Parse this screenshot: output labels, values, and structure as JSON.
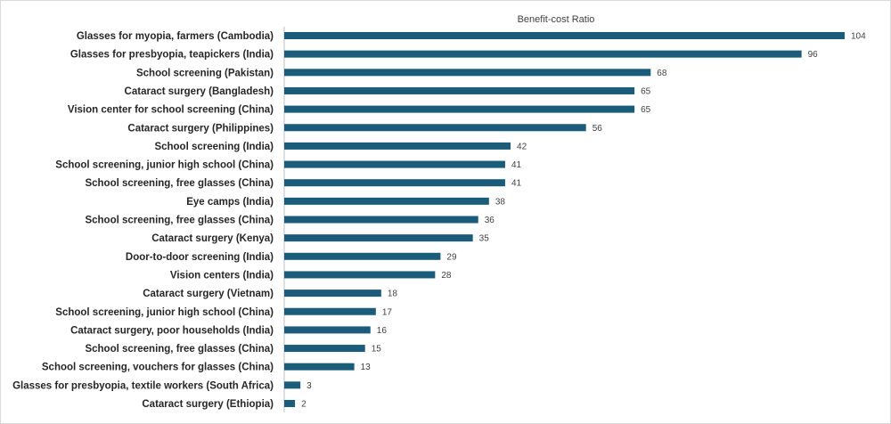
{
  "chart_data": {
    "type": "bar",
    "orientation": "horizontal",
    "title": "Benefit-cost Ratio",
    "xlabel": "",
    "ylabel": "",
    "xlim": [
      0,
      104
    ],
    "grid": false,
    "legend": "none",
    "bar_color": "#1b5c7a",
    "categories": [
      "Glasses for myopia, farmers (Cambodia)",
      "Glasses for presbyopia, teapickers (India)",
      "School screening (Pakistan)",
      "Cataract surgery (Bangladesh)",
      "Vision center for school screening (China)",
      "Cataract surgery (Philippines)",
      "School screening (India)",
      "School screening, junior high school (China)",
      "School screening, free glasses (China)",
      "Eye camps (India)",
      "School screening, free glasses (China)",
      "Cataract surgery (Kenya)",
      "Door-to-door screening (India)",
      "Vision centers (India)",
      "Cataract surgery (Vietnam)",
      "School screening, junior high school (China)",
      "Cataract surgery, poor households (India)",
      "School screening, free glasses (China)",
      "School screening, vouchers for glasses (China)",
      "Glasses for presbyopia, textile workers (South Africa)",
      "Cataract surgery (Ethiopia)"
    ],
    "values": [
      104,
      96,
      68,
      65,
      65,
      56,
      42,
      41,
      41,
      38,
      36,
      35,
      29,
      28,
      18,
      17,
      16,
      15,
      13,
      3,
      2
    ]
  }
}
